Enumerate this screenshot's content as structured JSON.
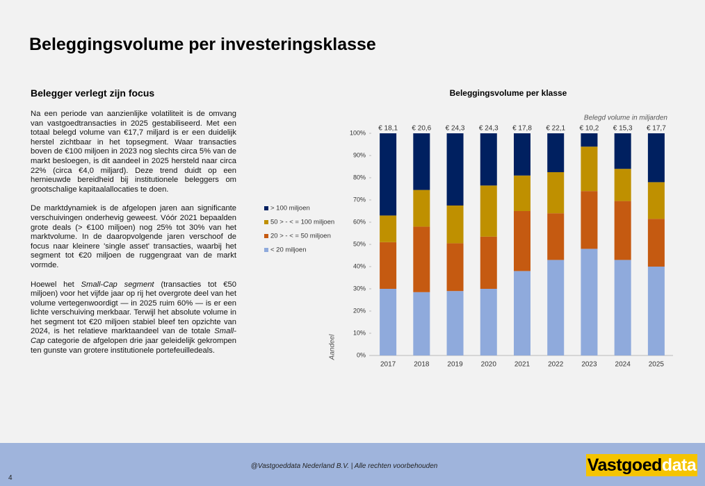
{
  "title": "Beleggingsvolume per investeringsklasse",
  "section_heading": "Belegger verlegt zijn focus",
  "paragraphs": [
    [
      "Na een periode van aanzienlijke volatiliteit is de omvang van vastgoedtransacties in 2025 gestabiliseerd. Met een totaal belegd volume van €17,7 miljard is er een duidelijk herstel zichtbaar in het topsegment. Waar transacties boven de €100 miljoen in 2023 nog slechts circa 5% van de markt besloegen, is dit aandeel in 2025 hersteld naar circa 22% (circa €4,0 miljard). Deze trend duidt op een hernieuwde bereidheid bij institutionele beleggers om grootschalige kapitaalallocaties te doen."
    ],
    [
      "De marktdynamiek is de afgelopen jaren aan significante verschuivingen onderhevig geweest. Vóór 2021 bepaalden grote deals (> €100 miljoen) nog 25% tot 30% van het marktvolume. In de daaropvolgende jaren verschoof de focus naar kleinere 'single asset' transacties, waarbij het segment tot €20 miljoen de ruggengraat van de markt vormde."
    ],
    [
      "Hoewel het ",
      "Small-Cap segment",
      " (transacties tot €50 miljoen) voor het vijfde jaar op rij het overgrote deel van het volume vertegenwoordigt — in 2025 ruim 60% — is er een lichte verschuiving merkbaar. Terwijl het absolute volume in het segment tot €20 miljoen stabiel bleef ten opzichte van 2024, is het relatieve marktaandeel van de totale ",
      "Small-Cap",
      " categorie de afgelopen drie jaar geleidelijk gekrompen ten gunste van grotere institutionele portefeuilledeals."
    ]
  ],
  "chart_data": {
    "type": "stacked_bar",
    "title": "Beleggingsvolume per klasse",
    "annotation": "Belegd volume in miljarden",
    "y_label": "Aandeel",
    "categories": [
      "2017",
      "2018",
      "2019",
      "2020",
      "2021",
      "2022",
      "2023",
      "2024",
      "2025"
    ],
    "series": [
      {
        "name": "< 20 miljoen",
        "color": "#8faadc",
        "values": [
          30,
          28.5,
          29,
          30,
          38,
          43,
          48,
          43,
          40
        ]
      },
      {
        "name": "20 > - < = 50 miljoen",
        "color": "#c55a11",
        "values": [
          21,
          29.5,
          21.5,
          23.5,
          27,
          21,
          26,
          26.5,
          21.5
        ]
      },
      {
        "name": "50 > - < = 100 miljoen",
        "color": "#bf9000",
        "values": [
          12,
          16.5,
          17,
          23,
          16,
          18.5,
          20,
          14.5,
          16.5
        ]
      },
      {
        "name": "> 100 miljoen",
        "color": "#002060",
        "values": [
          37,
          25.5,
          32.5,
          23.5,
          19,
          17.5,
          6,
          16,
          22
        ]
      }
    ],
    "bar_top_labels": [
      "€ 18,1",
      "€ 20,6",
      "€ 24,3",
      "€ 24,3",
      "€ 17,8",
      "€ 22,1",
      "€ 10,2",
      "€ 15,3",
      "€ 17,7"
    ],
    "ylim": [
      0,
      100
    ],
    "yticks": [
      {
        "value": 0,
        "label": "0%"
      },
      {
        "value": 10,
        "label": "10%"
      },
      {
        "value": 20,
        "label": "20%"
      },
      {
        "value": 30,
        "label": "30%"
      },
      {
        "value": 40,
        "label": "40%"
      },
      {
        "value": 50,
        "label": "50%"
      },
      {
        "value": 60,
        "label": "60%"
      },
      {
        "value": 70,
        "label": "70%"
      },
      {
        "value": 80,
        "label": "80%"
      },
      {
        "value": 90,
        "label": "90%"
      },
      {
        "value": 100,
        "label": "100%"
      }
    ],
    "legend": "left"
  },
  "footer": "@Vastgoeddata Nederland B.V. | Alle rechten voorbehouden",
  "page_number": "4",
  "logo": [
    "Vastgoed",
    "data"
  ]
}
